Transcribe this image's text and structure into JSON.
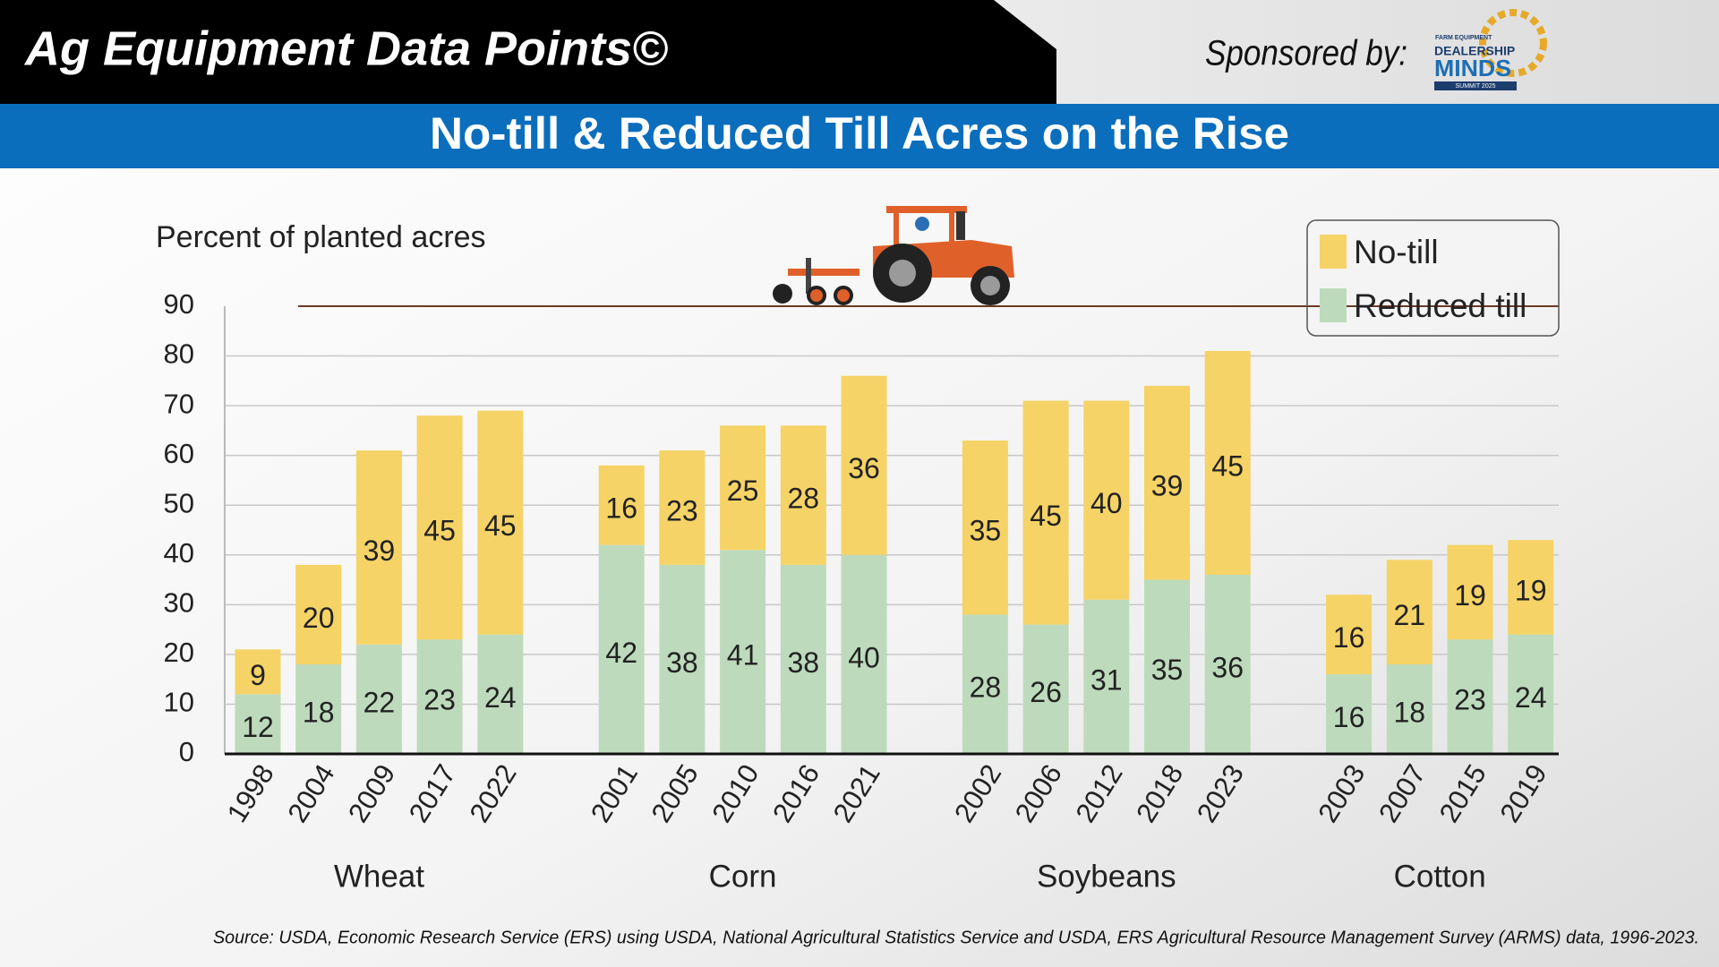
{
  "header": {
    "title": "Ag Equipment Data Points©",
    "sponsor": "Sponsored by:",
    "logo": {
      "top": "FARM EQUIPMENT",
      "line1": "DEALERSHIP",
      "line2": "MINDS",
      "sub": "SUMMIT 2025"
    }
  },
  "banner": "No-till & Reduced Till Acres on the Rise",
  "chart_data": {
    "type": "bar",
    "stacked": true,
    "y_label": "Percent of planted acres",
    "groups": [
      {
        "name": "Wheat",
        "categories": [
          "1998",
          "2004",
          "2009",
          "2017",
          "2022"
        ]
      },
      {
        "name": "Corn",
        "categories": [
          "2001",
          "2005",
          "2010",
          "2016",
          "2021"
        ]
      },
      {
        "name": "Soybeans",
        "categories": [
          "2002",
          "2006",
          "2012",
          "2018",
          "2023"
        ]
      },
      {
        "name": "Cotton",
        "categories": [
          "2003",
          "2007",
          "2015",
          "2019"
        ]
      }
    ],
    "series": [
      {
        "name": "No-till",
        "color": "#f6d366",
        "values": [
          9,
          20,
          39,
          45,
          45,
          16,
          23,
          25,
          28,
          36,
          35,
          45,
          40,
          39,
          45,
          16,
          21,
          19,
          19
        ]
      },
      {
        "name": "Reduced till",
        "color": "#bddbbc",
        "values": [
          12,
          18,
          22,
          23,
          24,
          42,
          38,
          41,
          38,
          40,
          28,
          26,
          31,
          35,
          36,
          16,
          18,
          23,
          24
        ]
      }
    ],
    "ylim": [
      0,
      90
    ],
    "yticks": [
      0,
      10,
      20,
      30,
      40,
      50,
      60,
      70,
      80,
      90
    ],
    "grid": true,
    "legend": "top-right"
  },
  "source": "Source: USDA, Economic Research Service (ERS) using USDA, National Agricultural Statistics Service and USDA, ERS Agricultural Resource Management Survey (ARMS) data, 1996-2023."
}
